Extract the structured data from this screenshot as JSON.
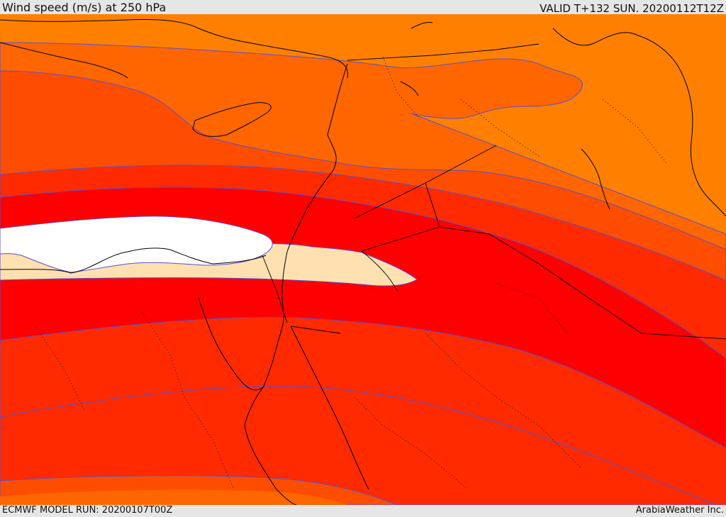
{
  "header": {
    "title": "Wind speed (m/s) at 250 hPa",
    "valid": "VALID T+132 SUN. 20200112T12Z"
  },
  "footer": {
    "model_run": "ECMWF MODEL RUN: 20200107T00Z",
    "credit": "ArabiaWeather Inc."
  },
  "colors": {
    "band_1": "#ff8000",
    "band_2": "#ff6600",
    "band_3": "#ff4d00",
    "band_4": "#ff2a00",
    "band_5": "#ff0000",
    "band_6": "#ffe0b0",
    "band_7": "#ffffff",
    "contour": "#5a4fd0",
    "border": "#000000"
  }
}
